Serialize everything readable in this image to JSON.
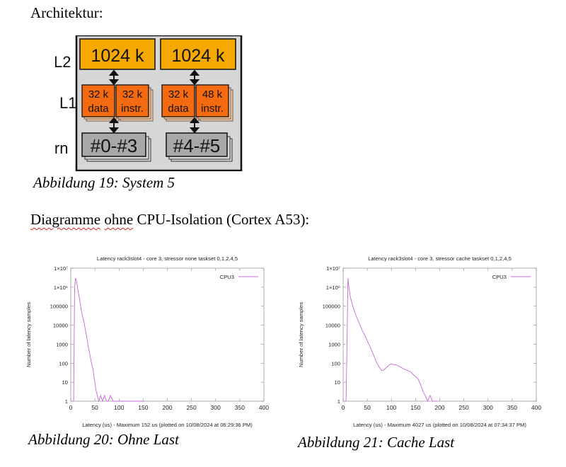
{
  "heading_architecture": "Architektur:",
  "diagram": {
    "row_labels": [
      "L2",
      "L1",
      "Kern"
    ],
    "l2_blocks": [
      "1024 k",
      "1024 k"
    ],
    "l1_blocks": [
      {
        "size": "32 k",
        "type": "data"
      },
      {
        "size": "32 k",
        "type": "instr."
      },
      {
        "size": "32 k",
        "type": "data"
      },
      {
        "size": "48 k",
        "type": "instr."
      }
    ],
    "core_blocks": [
      "#0-#3",
      "#4-#5"
    ],
    "colors": {
      "l2": "#f5a800",
      "l1": "#f46a10",
      "core": "#a8a8a8",
      "frame": "#d6d6d6"
    }
  },
  "caption_fig19": "Abbildung 19: System 5",
  "heading_diagrams": {
    "part1": "Diagramme",
    "part2": "ohne",
    "part3": "CPU-Isolation (Cortex A53):"
  },
  "caption_fig20": "Abbildung 20: Ohne Last",
  "caption_fig21": "Abbildung 21: Cache Last",
  "chart_data": [
    {
      "type": "line",
      "title": "Latency rack3slot4 - core 3,  stressor none taskset 0,1,2,4,5",
      "xlabel": "Latency (us) - Maximum 152 us (plotted on 10/08/2024 at 06:29:36 PM)",
      "ylabel": "Number of latency samples",
      "xlim": [
        0,
        400
      ],
      "ylim": [
        1,
        10000000
      ],
      "yscale": "log",
      "x_ticks": [
        "0",
        "50",
        "100",
        "150",
        "200",
        "250",
        "300",
        "350",
        "400"
      ],
      "y_ticks": [
        "1",
        "10",
        "100",
        "1000",
        "10000",
        "100000",
        "1×10⁶",
        "1×10⁷"
      ],
      "legend": "top-right",
      "color": "#c864d8",
      "series": [
        {
          "name": "CPU3",
          "x": [
            6,
            8,
            10,
            12,
            15,
            18,
            20,
            22,
            25,
            28,
            30,
            33,
            36,
            40,
            43,
            46,
            48,
            50,
            52,
            55,
            58,
            62,
            66,
            70,
            74,
            78,
            82,
            88,
            95,
            105,
            115,
            125,
            135,
            145,
            152
          ],
          "y": [
            1,
            1000000,
            3000000,
            2000000,
            700000,
            250000,
            120000,
            60000,
            25000,
            12000,
            6000,
            2500,
            800,
            250,
            100,
            50,
            20,
            10,
            4,
            2,
            1,
            2,
            1,
            2,
            1,
            1,
            2,
            1,
            1,
            1,
            1,
            1,
            1,
            1,
            1
          ]
        }
      ]
    },
    {
      "type": "line",
      "title": "Latency rack3slot4 - core 3,  stressor cache taskset 0,1,2,4,5",
      "xlabel": "Latency (us) - Maximum 4027 us (plotted on 10/08/2024 at 07:34:37 PM)",
      "ylabel": "Number of latency samples",
      "xlim": [
        0,
        400
      ],
      "ylim": [
        1,
        10000000
      ],
      "yscale": "log",
      "x_ticks": [
        "0",
        "50",
        "100",
        "150",
        "200",
        "250",
        "300",
        "350",
        "400"
      ],
      "y_ticks": [
        "1",
        "10",
        "100",
        "1000",
        "10000",
        "100000",
        "1×10⁶",
        "1×10⁷"
      ],
      "legend": "top-right",
      "color": "#c864d8",
      "series": [
        {
          "name": "CPU3",
          "x": [
            6,
            8,
            10,
            12,
            15,
            20,
            25,
            30,
            35,
            40,
            45,
            50,
            55,
            60,
            65,
            70,
            75,
            80,
            85,
            90,
            95,
            100,
            105,
            110,
            115,
            120,
            125,
            130,
            135,
            140,
            145,
            150,
            155,
            160,
            163,
            166,
            170,
            175,
            180,
            185,
            190,
            195
          ],
          "y": [
            1,
            1000,
            3000000,
            1000000,
            300000,
            100000,
            40000,
            20000,
            10000,
            5000,
            3000,
            1500,
            800,
            400,
            200,
            100,
            60,
            40,
            45,
            60,
            80,
            90,
            85,
            80,
            70,
            60,
            50,
            45,
            40,
            35,
            25,
            20,
            15,
            8,
            5,
            3,
            2,
            1,
            2,
            1,
            1,
            1
          ]
        }
      ]
    }
  ]
}
